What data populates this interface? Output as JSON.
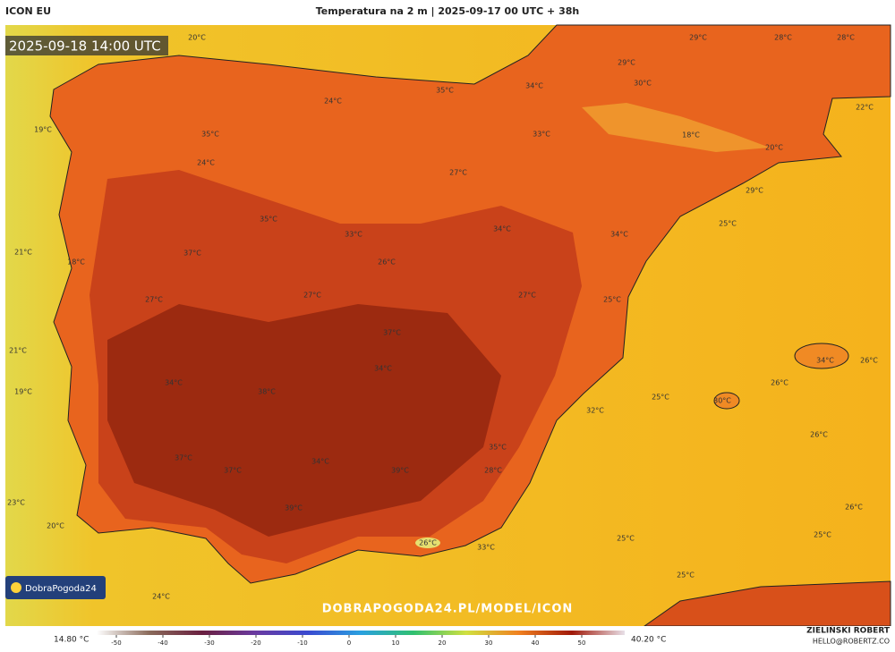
{
  "header": {
    "model": "ICON EU",
    "title": "Temperatura na 2 m | 2025-09-17 00 UTC + 38h"
  },
  "timestamp": "2025-09-18 14:00 UTC",
  "temperature_labels": [
    "20°C",
    "29°C",
    "28°C",
    "28°C",
    "29°C",
    "30°C",
    "35°C",
    "34°C",
    "24°C",
    "19°C",
    "35°C",
    "33°C",
    "18°C",
    "22°C",
    "20°C",
    "24°C",
    "27°C",
    "29°C",
    "35°C",
    "33°C",
    "34°C",
    "34°C",
    "25°C",
    "21°C",
    "18°C",
    "37°C",
    "26°C",
    "27°C",
    "27°C",
    "27°C",
    "25°C",
    "37°C",
    "21°C",
    "34°C",
    "34°C",
    "38°C",
    "19°C",
    "25°C",
    "26°C",
    "26°C",
    "34°C",
    "30°C",
    "32°C",
    "26°C",
    "35°C",
    "37°C",
    "37°C",
    "34°C",
    "39°C",
    "28°C",
    "23°C",
    "26°C",
    "39°C",
    "20°C",
    "26°C",
    "33°C",
    "25°C",
    "25°C",
    "25°C",
    "24°C"
  ],
  "logo": "DobraPogoda24",
  "watermark": "DOBRAPOGODA24.PL/MODEL/ICON",
  "colorbar": {
    "min_label": "14.80 °C",
    "max_label": "40.20 °C",
    "ticks": [
      -50,
      -40,
      -30,
      -20,
      -10,
      0,
      10,
      20,
      30,
      40,
      50
    ]
  },
  "credits": {
    "author": "ZIELIŃSKI ROBERT",
    "email": "HELLO@ROBERTZ.CO"
  }
}
